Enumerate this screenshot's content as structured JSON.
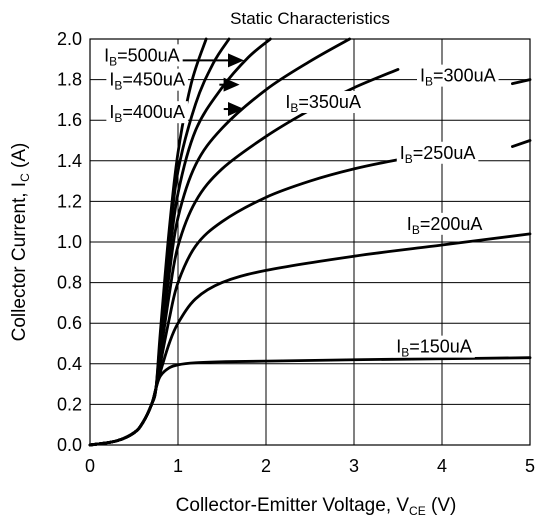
{
  "chart_data": {
    "type": "line",
    "title": "Static Characteristics",
    "xlabel": {
      "main": "Collector-Emitter Voltage, V",
      "sub": "CE",
      "suffix": " (V)"
    },
    "ylabel": {
      "main": "Collector Current, I",
      "sub": "C",
      "suffix": " (A)"
    },
    "xlim": [
      0,
      5
    ],
    "ylim": [
      0,
      2.0
    ],
    "x_ticks": [
      "0",
      "1",
      "2",
      "3",
      "4",
      "5"
    ],
    "y_ticks": [
      "0.0",
      "0.2",
      "0.4",
      "0.6",
      "0.8",
      "1.0",
      "1.2",
      "1.4",
      "1.6",
      "1.8",
      "2.0"
    ],
    "grid": true,
    "series": [
      {
        "name": "IB=150uA",
        "label": {
          "pre": "I",
          "sub": "B",
          "post": "=150uA"
        },
        "points": [
          [
            0,
            0
          ],
          [
            0.3,
            0.02
          ],
          [
            0.5,
            0.06
          ],
          [
            0.6,
            0.11
          ],
          [
            0.7,
            0.2
          ],
          [
            0.75,
            0.28
          ],
          [
            0.8,
            0.34
          ],
          [
            0.9,
            0.38
          ],
          [
            1.0,
            0.395
          ],
          [
            1.2,
            0.405
          ],
          [
            1.5,
            0.41
          ],
          [
            2,
            0.413
          ],
          [
            3,
            0.42
          ],
          [
            4,
            0.425
          ],
          [
            5,
            0.43
          ]
        ]
      },
      {
        "name": "IB=200uA",
        "label": {
          "pre": "I",
          "sub": "B",
          "post": "=200uA"
        },
        "points": [
          [
            0,
            0
          ],
          [
            0.3,
            0.02
          ],
          [
            0.5,
            0.06
          ],
          [
            0.6,
            0.11
          ],
          [
            0.7,
            0.2
          ],
          [
            0.75,
            0.28
          ],
          [
            0.8,
            0.36
          ],
          [
            0.9,
            0.5
          ],
          [
            1.0,
            0.6
          ],
          [
            1.2,
            0.72
          ],
          [
            1.5,
            0.8
          ],
          [
            2,
            0.86
          ],
          [
            3,
            0.93
          ],
          [
            4,
            0.985
          ],
          [
            5,
            1.04
          ]
        ]
      },
      {
        "name": "IB=250uA",
        "label": {
          "pre": "I",
          "sub": "B",
          "post": "=250uA"
        },
        "points": [
          [
            0,
            0
          ],
          [
            0.3,
            0.02
          ],
          [
            0.5,
            0.06
          ],
          [
            0.6,
            0.11
          ],
          [
            0.7,
            0.2
          ],
          [
            0.75,
            0.28
          ],
          [
            0.8,
            0.4
          ],
          [
            0.9,
            0.62
          ],
          [
            1.0,
            0.8
          ],
          [
            1.2,
            0.98
          ],
          [
            1.5,
            1.1
          ],
          [
            2,
            1.22
          ],
          [
            2.5,
            1.3
          ],
          [
            3,
            1.36
          ],
          [
            3.5,
            1.405
          ],
          [
            4,
            1.44
          ]
        ]
      },
      {
        "name": "IB=250uA-tail",
        "label": null,
        "points": [
          [
            4.8,
            1.47
          ],
          [
            5,
            1.5
          ]
        ]
      },
      {
        "name": "IB=300uA",
        "label": {
          "pre": "I",
          "sub": "B",
          "post": "=300uA"
        },
        "points": [
          [
            0,
            0
          ],
          [
            0.3,
            0.02
          ],
          [
            0.5,
            0.06
          ],
          [
            0.6,
            0.11
          ],
          [
            0.7,
            0.2
          ],
          [
            0.75,
            0.28
          ],
          [
            0.8,
            0.44
          ],
          [
            0.9,
            0.74
          ],
          [
            1.0,
            0.98
          ],
          [
            1.2,
            1.2
          ],
          [
            1.5,
            1.36
          ],
          [
            2,
            1.52
          ],
          [
            2.5,
            1.65
          ],
          [
            3,
            1.76
          ],
          [
            3.5,
            1.85
          ]
        ]
      },
      {
        "name": "IB=300uA-tail",
        "label": null,
        "points": [
          [
            4.8,
            1.78
          ],
          [
            5,
            1.8
          ]
        ]
      },
      {
        "name": "IB=350uA",
        "label": {
          "pre": "I",
          "sub": "B",
          "post": "=350uA"
        },
        "points": [
          [
            0,
            0
          ],
          [
            0.3,
            0.02
          ],
          [
            0.5,
            0.06
          ],
          [
            0.6,
            0.11
          ],
          [
            0.7,
            0.2
          ],
          [
            0.75,
            0.28
          ],
          [
            0.8,
            0.47
          ],
          [
            0.9,
            0.84
          ],
          [
            1.0,
            1.12
          ],
          [
            1.2,
            1.38
          ],
          [
            1.5,
            1.56
          ],
          [
            2,
            1.75
          ],
          [
            2.5,
            1.89
          ],
          [
            2.95,
            2.0
          ]
        ]
      },
      {
        "name": "IB=400uA",
        "label": {
          "pre": "I",
          "sub": "B",
          "post": "=400uA"
        },
        "points": [
          [
            0,
            0
          ],
          [
            0.3,
            0.02
          ],
          [
            0.5,
            0.06
          ],
          [
            0.6,
            0.11
          ],
          [
            0.7,
            0.2
          ],
          [
            0.75,
            0.28
          ],
          [
            0.8,
            0.5
          ],
          [
            0.9,
            0.92
          ],
          [
            1.0,
            1.24
          ],
          [
            1.2,
            1.55
          ],
          [
            1.5,
            1.76
          ],
          [
            1.8,
            1.91
          ],
          [
            2.05,
            2.0
          ]
        ]
      },
      {
        "name": "IB=450uA",
        "label": {
          "pre": "I",
          "sub": "B",
          "post": "=450uA"
        },
        "points": [
          [
            0,
            0
          ],
          [
            0.3,
            0.02
          ],
          [
            0.5,
            0.06
          ],
          [
            0.6,
            0.11
          ],
          [
            0.7,
            0.2
          ],
          [
            0.75,
            0.28
          ],
          [
            0.8,
            0.53
          ],
          [
            0.9,
            1.0
          ],
          [
            1.0,
            1.35
          ],
          [
            1.2,
            1.68
          ],
          [
            1.4,
            1.88
          ],
          [
            1.58,
            2.0
          ]
        ]
      },
      {
        "name": "IB=500uA",
        "label": {
          "pre": "I",
          "sub": "B",
          "post": "=500uA"
        },
        "points": [
          [
            0,
            0
          ],
          [
            0.3,
            0.02
          ],
          [
            0.5,
            0.06
          ],
          [
            0.6,
            0.11
          ],
          [
            0.7,
            0.2
          ],
          [
            0.75,
            0.28
          ],
          [
            0.8,
            0.56
          ],
          [
            0.9,
            1.06
          ],
          [
            1.0,
            1.44
          ],
          [
            1.15,
            1.78
          ],
          [
            1.32,
            2.0
          ]
        ]
      }
    ],
    "labels": [
      {
        "series": "IB=150uA",
        "x": 3.48,
        "y": 0.455
      },
      {
        "series": "IB=200uA",
        "x": 3.6,
        "y": 1.06
      },
      {
        "series": "IB=250uA",
        "x": 3.52,
        "y": 1.41
      },
      {
        "series": "IB=300uA",
        "x": 3.75,
        "y": 1.79
      },
      {
        "series": "IB=350uA",
        "x": 2.22,
        "y": 1.66
      },
      {
        "series": "IB=400uA",
        "x": 0.22,
        "y": 1.61
      },
      {
        "series": "IB=450uA",
        "x": 0.22,
        "y": 1.77
      },
      {
        "series": "IB=500uA",
        "x": 0.16,
        "y": 1.89
      }
    ],
    "arrows": [
      {
        "series": "IB=500uA",
        "from": [
          0.85,
          1.895
        ],
        "to": [
          1.75,
          1.895
        ]
      },
      {
        "series": "IB=450uA",
        "from": [
          1.47,
          1.775
        ],
        "to": [
          1.7,
          1.775
        ]
      },
      {
        "series": "IB=400uA",
        "from": [
          1.52,
          1.655
        ],
        "to": [
          1.75,
          1.655
        ]
      }
    ]
  }
}
